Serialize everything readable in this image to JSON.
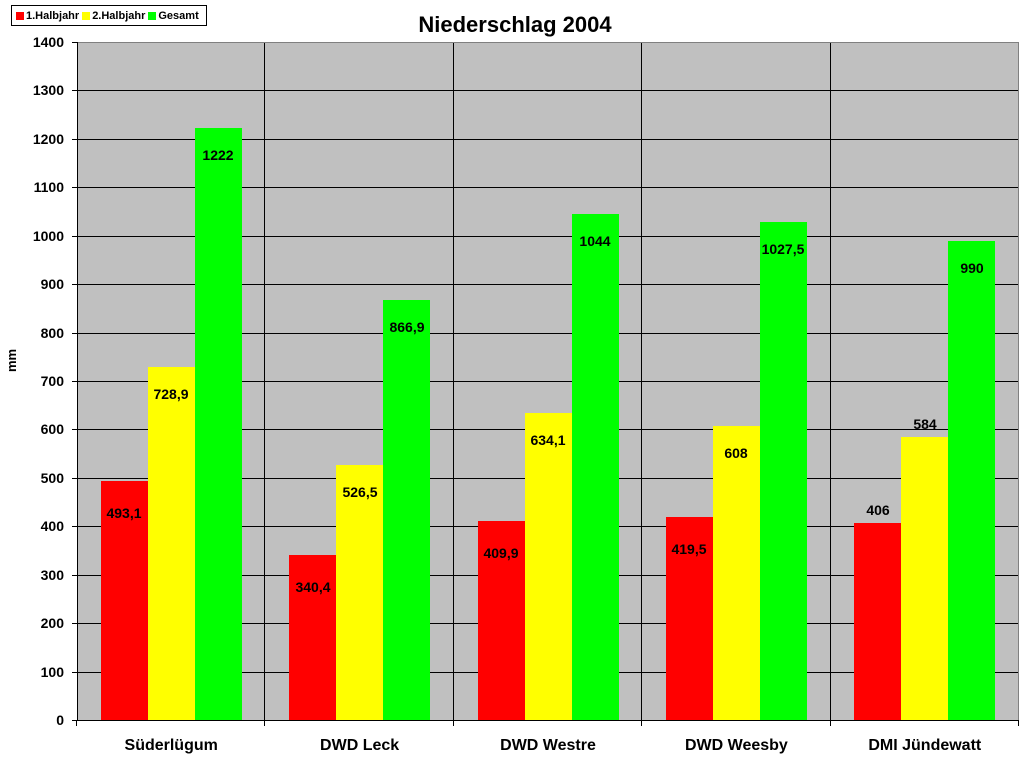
{
  "legend": {
    "items": [
      {
        "label": "1.Halbjahr",
        "color": "#ff0000"
      },
      {
        "label": "2.Halbjahr",
        "color": "#ffff00"
      },
      {
        "label": "Gesamt",
        "color": "#00ff00"
      }
    ]
  },
  "colors": {
    "plot_bg": "#c0c0c0",
    "grid": "#000000"
  },
  "chart_data": {
    "type": "bar",
    "title": "Niederschlag 2004",
    "xlabel": "",
    "ylabel": "mm",
    "ylim": [
      0,
      1400
    ],
    "yticks": [
      0,
      100,
      200,
      300,
      400,
      500,
      600,
      700,
      800,
      900,
      1000,
      1100,
      1200,
      1300,
      1400
    ],
    "grid": true,
    "legend_position": "top-left",
    "categories": [
      "Süderlügum",
      "DWD Leck",
      "DWD Westre",
      "DWD Weesby",
      "DMI Jündewatt"
    ],
    "series": [
      {
        "name": "1.Halbjahr",
        "color": "#ff0000",
        "values": [
          493.1,
          340.4,
          409.9,
          419.5,
          406
        ],
        "labels": [
          "493,1",
          "340,4",
          "409,9",
          "419,5",
          "406"
        ]
      },
      {
        "name": "2.Halbjahr",
        "color": "#ffff00",
        "values": [
          728.9,
          526.5,
          634.1,
          608,
          584
        ],
        "labels": [
          "728,9",
          "526,5",
          "634,1",
          "608",
          "584"
        ]
      },
      {
        "name": "Gesamt",
        "color": "#00ff00",
        "values": [
          1222,
          866.9,
          1044,
          1027.5,
          990
        ],
        "labels": [
          "1222",
          "866,9",
          "1044",
          "1027,5",
          "990"
        ]
      }
    ]
  }
}
